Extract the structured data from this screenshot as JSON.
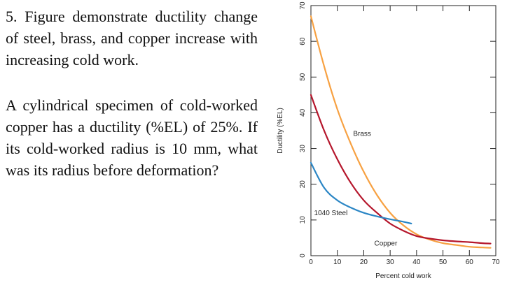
{
  "problem": {
    "paragraph1": "5. Figure demonstrate ductility change of steel, brass, and copper increase with increasing cold work.",
    "paragraph2": "A cylindrical specimen of cold-worked copper has a ductility (%EL) of 25%. If its cold-worked radius is 10 mm, what was its radius before deformation?"
  },
  "chart_data": {
    "type": "line",
    "xlabel": "Percent cold work",
    "ylabel": "Ductility (%EL)",
    "xlim": [
      0,
      70
    ],
    "ylim": [
      0,
      70
    ],
    "xticks": [
      0,
      10,
      20,
      30,
      40,
      50,
      60,
      70
    ],
    "yticks": [
      0,
      10,
      20,
      30,
      40,
      50,
      60,
      70
    ],
    "grid": false,
    "series": [
      {
        "name": "Brass",
        "color": "#f7a142",
        "x": [
          0,
          5,
          10,
          15,
          20,
          25,
          30,
          35,
          40,
          45,
          50,
          55,
          60,
          65,
          68
        ],
        "y": [
          67,
          53,
          41,
          31.5,
          23.5,
          17,
          12,
          8.5,
          6,
          4.5,
          3.5,
          3,
          2.5,
          2.3,
          2.2
        ]
      },
      {
        "name": "Copper",
        "color": "#b5162c",
        "x": [
          0,
          5,
          10,
          15,
          20,
          25,
          30,
          35,
          40,
          45,
          50,
          55,
          60,
          65,
          68
        ],
        "y": [
          45,
          35,
          27,
          20.5,
          15.5,
          12,
          9,
          7,
          5.5,
          4.8,
          4.3,
          4,
          3.8,
          3.5,
          3.4
        ]
      },
      {
        "name": "1040 Steel",
        "color": "#2b86c5",
        "x": [
          0,
          5,
          10,
          15,
          20,
          25,
          30,
          35,
          38
        ],
        "y": [
          26,
          19,
          15.5,
          13.5,
          12,
          11,
          10.2,
          9.5,
          9
        ]
      }
    ]
  }
}
